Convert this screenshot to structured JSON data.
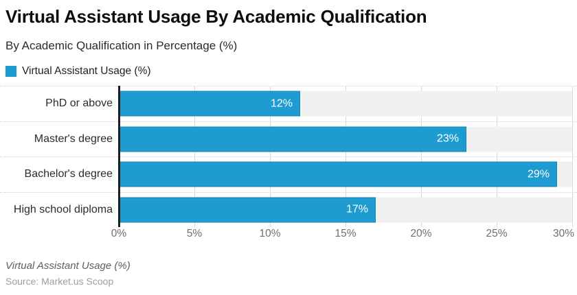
{
  "header": {
    "title": "Virtual Assistant Usage By Academic Qualification",
    "subtitle": "By Academic Qualification in Percentage (%)"
  },
  "legend": {
    "label": "Virtual Assistant Usage (%)"
  },
  "chart_data": {
    "type": "bar",
    "orientation": "horizontal",
    "title": "Virtual Assistant Usage By Academic Qualification",
    "subtitle": "By Academic Qualification in Percentage (%)",
    "series_name": "Virtual Assistant Usage (%)",
    "categories": [
      "PhD or above",
      "Master's degree",
      "Bachelor's degree",
      "High school diploma"
    ],
    "values": [
      12,
      23,
      29,
      17
    ],
    "value_labels": [
      "12%",
      "23%",
      "29%",
      "17%"
    ],
    "x_ticks": [
      "0%",
      "5%",
      "10%",
      "15%",
      "20%",
      "25%",
      "30%"
    ],
    "x_tick_values": [
      0,
      5,
      10,
      15,
      20,
      25,
      30
    ],
    "xlim": [
      0,
      30
    ],
    "grid": true,
    "legend_position": "top-left",
    "bar_color": "#1e9cd2",
    "track_color": "#f0f0f0",
    "gridline_color": "#d9d9d9",
    "axis_line_color": "#1f1f1f",
    "value_label_color": "#ffffff"
  },
  "footer": {
    "axis_title": "Virtual Assistant Usage (%)",
    "source": "Source: Market.us Scoop"
  }
}
